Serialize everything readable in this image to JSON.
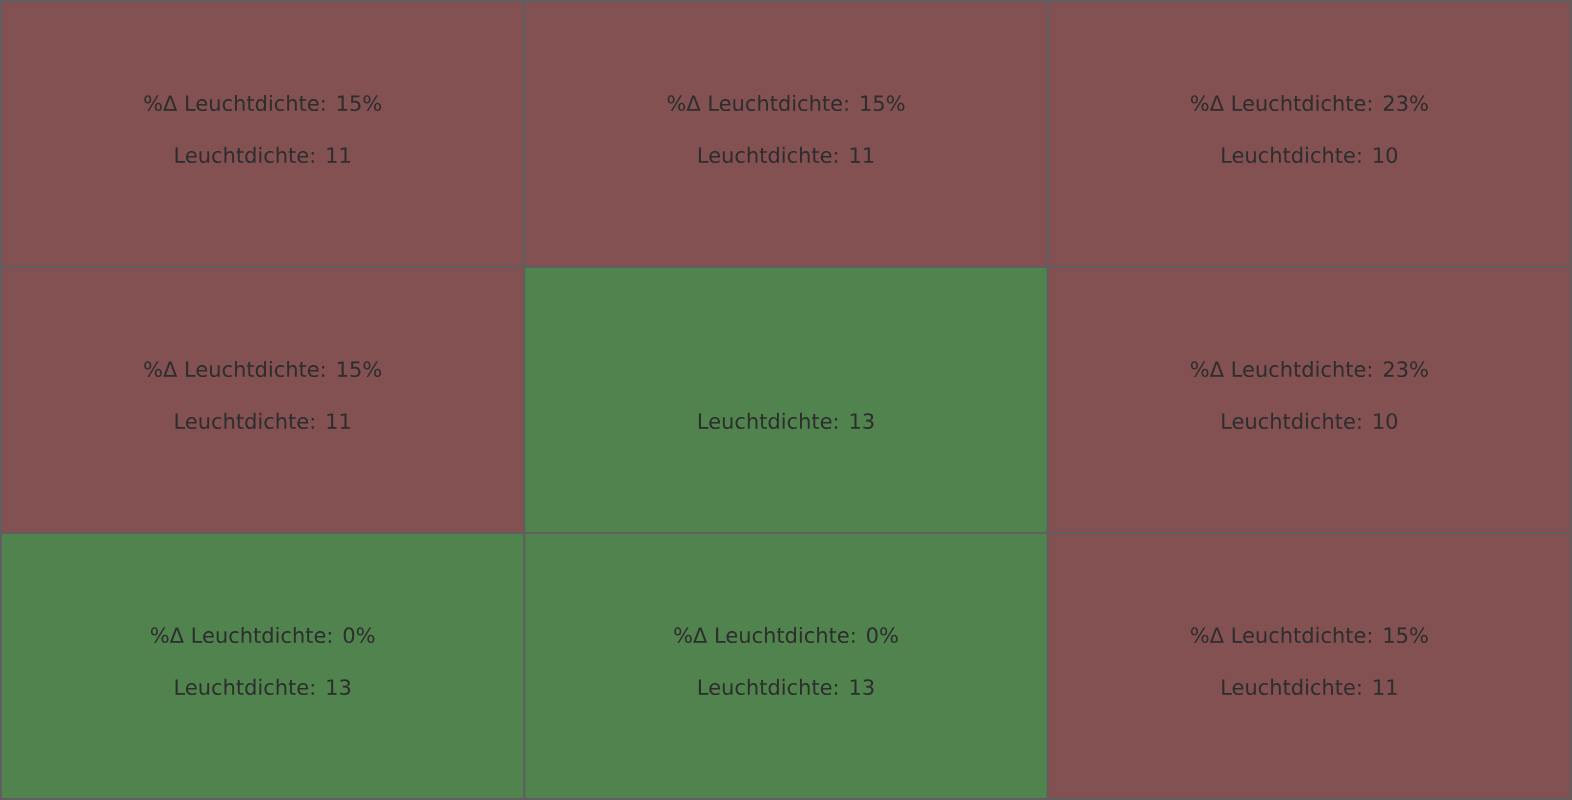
{
  "chart_data": {
    "type": "heatmap",
    "categories": [
      null,
      null,
      null
    ],
    "y_categories": [
      null,
      null,
      null
    ],
    "cells": [
      [
        11,
        11,
        10
      ],
      [
        11,
        13,
        10
      ],
      [
        13,
        13,
        11
      ]
    ],
    "cell_labels": [
      [
        "Leuchtdichte:  11",
        "Leuchtdichte:  11",
        "Leuchtdichte:  10"
      ],
      [
        "Leuchtdichte:  11",
        "Leuchtdichte:  13",
        "Leuchtdichte:  10"
      ],
      [
        "Leuchtdichte:  13",
        "Leuchtdichte:  13",
        "Leuchtdichte:  11"
      ]
    ],
    "annotations": [
      "%Δ Leuchtdichte:  15%",
      "%Δ Leuchtdichte:  15%",
      "%Δ Leuchtdichte:  23%",
      "%Δ Leuchtdichte:  15%",
      null,
      "%Δ Leuchtdichte:  23%",
      "%Δ Leuchtdichte:  0%",
      "%Δ Leuchtdichte:  0%",
      "%Δ Leuchtdichte:  15%"
    ],
    "colors": [
      "#835152",
      "#51834f"
    ]
  }
}
